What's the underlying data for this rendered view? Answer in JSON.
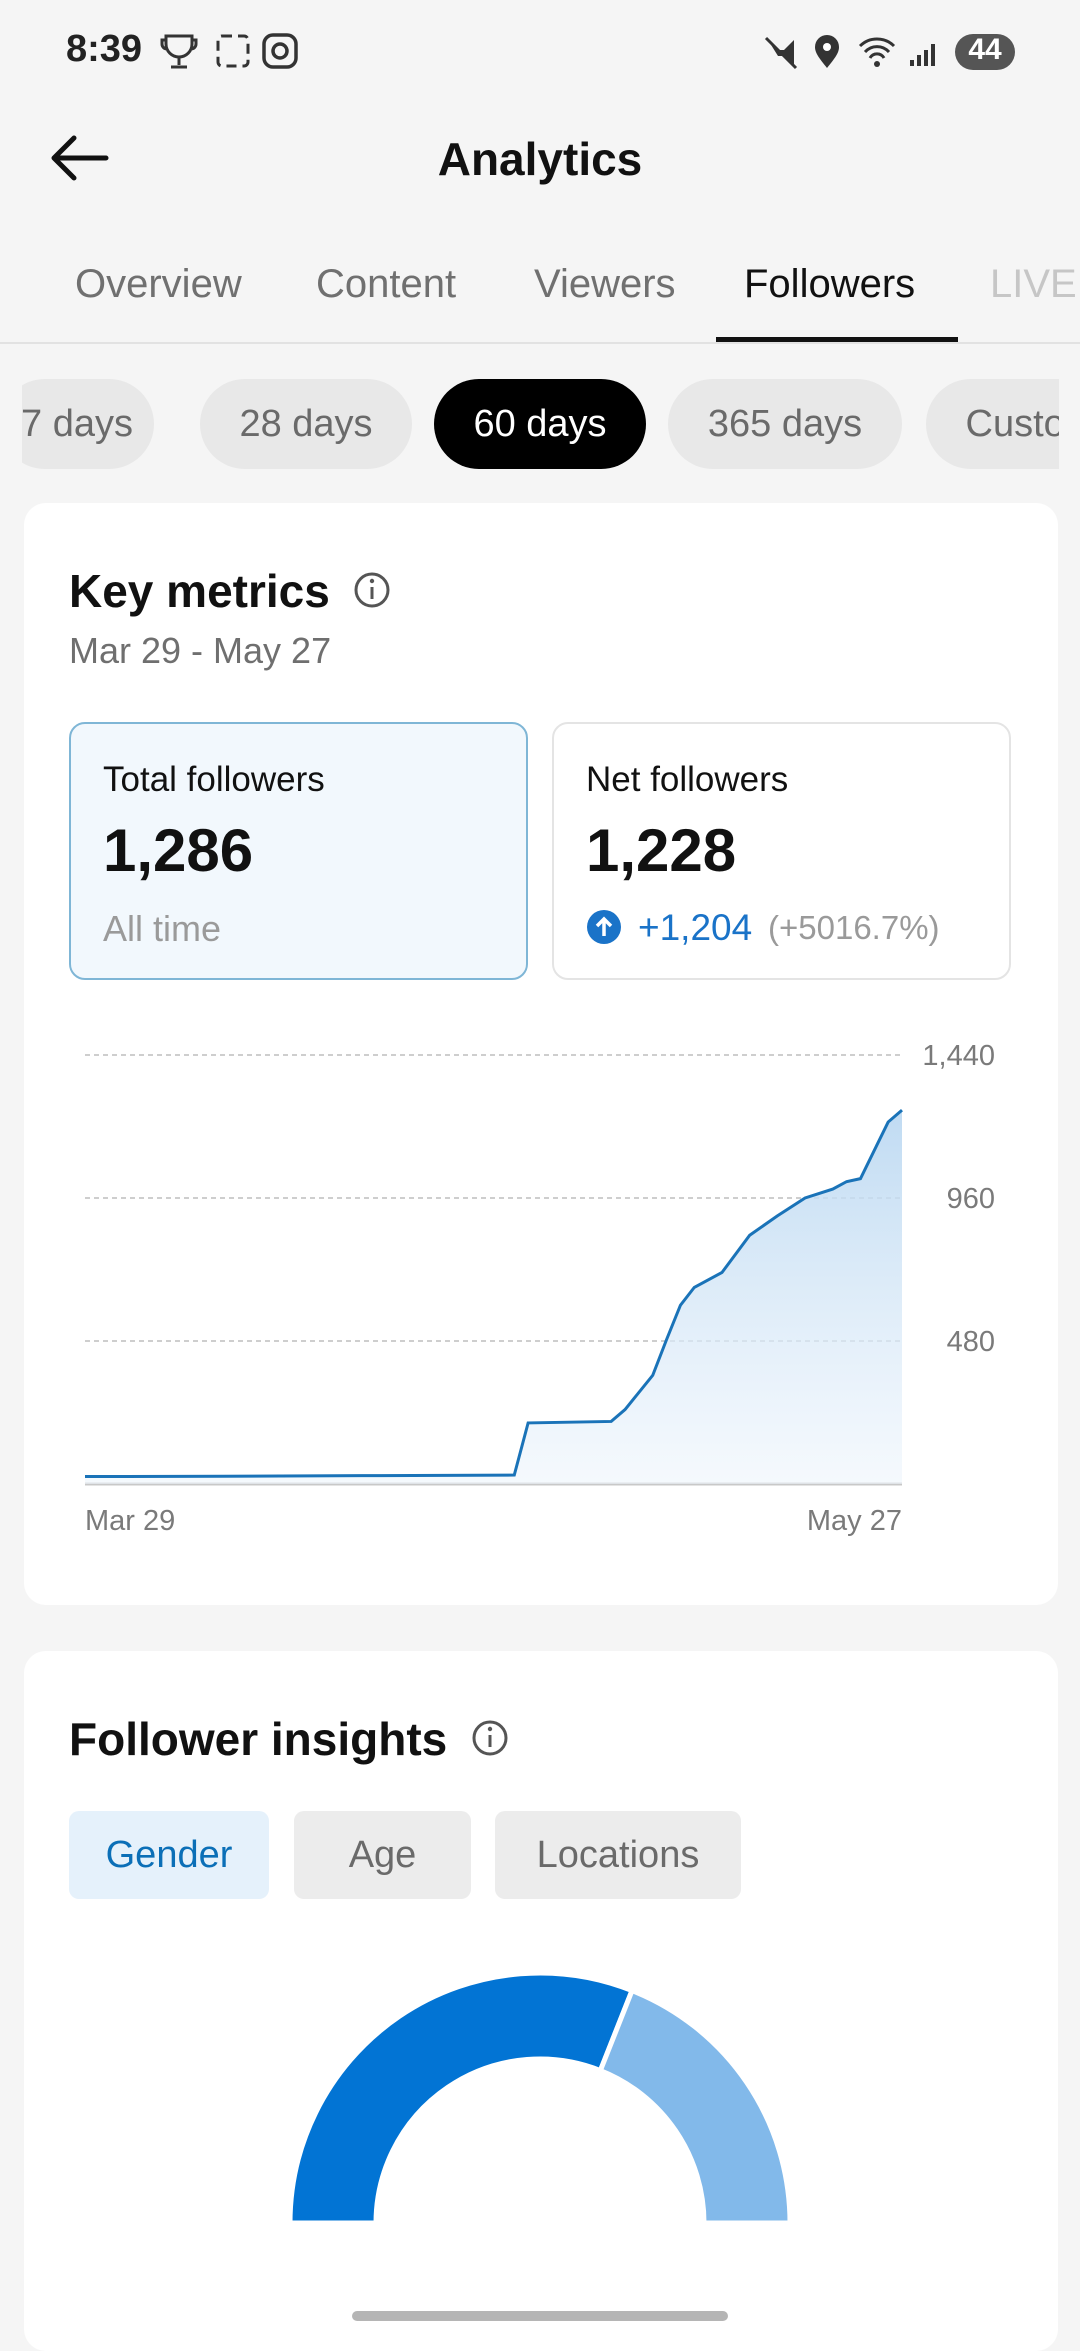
{
  "status_bar": {
    "time": "8:39",
    "battery": "44"
  },
  "header": {
    "title": "Analytics"
  },
  "tabs": {
    "items": [
      "Overview",
      "Content",
      "Viewers",
      "Followers",
      "LIVE"
    ],
    "selected": 3
  },
  "periods": {
    "items": [
      "7 days",
      "28 days",
      "60 days",
      "365 days",
      "Custom"
    ],
    "selected": 2
  },
  "key_metrics": {
    "title": "Key metrics",
    "date_range": "Mar 29 - May 27",
    "total": {
      "label": "Total followers",
      "value": "1,286",
      "note": "All time"
    },
    "net": {
      "label": "Net followers",
      "value": "1,228",
      "change": "+1,204",
      "change_pct": "(+5016.7%)"
    }
  },
  "follower_insights": {
    "title": "Follower insights",
    "tabs": [
      "Gender",
      "Age",
      "Locations"
    ],
    "selected": 0
  },
  "chart_data": [
    {
      "type": "line",
      "x": [
        0,
        10,
        20,
        31,
        32,
        38,
        39,
        41,
        42,
        43,
        44,
        46,
        48,
        50,
        52,
        54,
        55,
        56,
        58,
        59
      ],
      "xlim": [
        0,
        59
      ],
      "xticks": [
        {
          "value": 0,
          "label": "Mar 29"
        },
        {
          "value": 59,
          "label": "May 27"
        }
      ],
      "series": [
        {
          "color": "#1a73b8",
          "values": [
            25,
            26,
            28,
            30,
            205,
            210,
            250,
            365,
            485,
            600,
            660,
            710,
            835,
            900,
            960,
            990,
            1015,
            1025,
            1215,
            1255
          ]
        }
      ],
      "ylim": [
        0,
        1440
      ],
      "yticks": [
        480,
        960,
        {
          "value": 1440,
          "label": "1,440"
        }
      ],
      "grid": true
    },
    {
      "type": "donut",
      "values": [
        62,
        38
      ],
      "colors": [
        "#0274d4",
        "#82b9ea"
      ]
    }
  ]
}
